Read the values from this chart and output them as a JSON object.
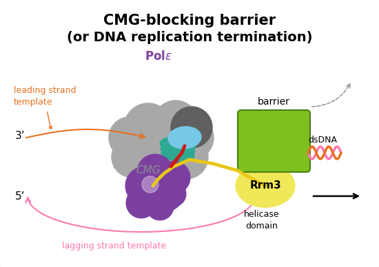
{
  "title_line1": "CMG-blocking barrier",
  "title_line2": "(or DNA replication termination)",
  "title_fontsize": 15,
  "bg_color": "#ffffff",
  "colors": {
    "purple": "#7B3FA0",
    "gray_cmg": "#A8A8A8",
    "gray_cmg_edge": "#787878",
    "dark_gray": "#606060",
    "teal": "#2EA890",
    "teal_dark": "#1a7060",
    "light_blue": "#78C8E8",
    "light_blue_edge": "#4898B8",
    "green_barrier": "#7DC020",
    "green_barrier_edge": "#4a8010",
    "yellow_rrm3": "#F0E858",
    "yellow_rrm3_edge": "#C0B010",
    "orange_strand": "#E87020",
    "pink_strand": "#FF78B0",
    "red_strand": "#CC1818",
    "yellow_dna": "#E8C818",
    "dna_orange": "#E87020",
    "dna_pink": "#FF78B0",
    "gray_arrow": "#888888"
  },
  "labels": {
    "pole": "Polε",
    "cmg": "CMG",
    "rrm3": "Rrm3",
    "barrier": "barrier",
    "dsdna": "dsDNA",
    "helicase_domain": "helicase\ndomain",
    "leading": "leading strand\ntemplate",
    "lagging": "lagging strand template",
    "three_prime": "3’",
    "five_prime": "5’"
  },
  "cmg_circles": [
    [
      215,
      185,
      35
    ],
    [
      255,
      178,
      32
    ],
    [
      278,
      200,
      32
    ],
    [
      270,
      228,
      32
    ],
    [
      245,
      245,
      30
    ],
    [
      215,
      245,
      30
    ],
    [
      192,
      228,
      30
    ],
    [
      188,
      200,
      30
    ]
  ],
  "pol_circles": [
    [
      210,
      270,
      28
    ],
    [
      238,
      278,
      30
    ],
    [
      225,
      250,
      26
    ],
    [
      252,
      258,
      24
    ],
    [
      205,
      295,
      22
    ],
    [
      232,
      300,
      20
    ],
    [
      252,
      282,
      18
    ]
  ]
}
